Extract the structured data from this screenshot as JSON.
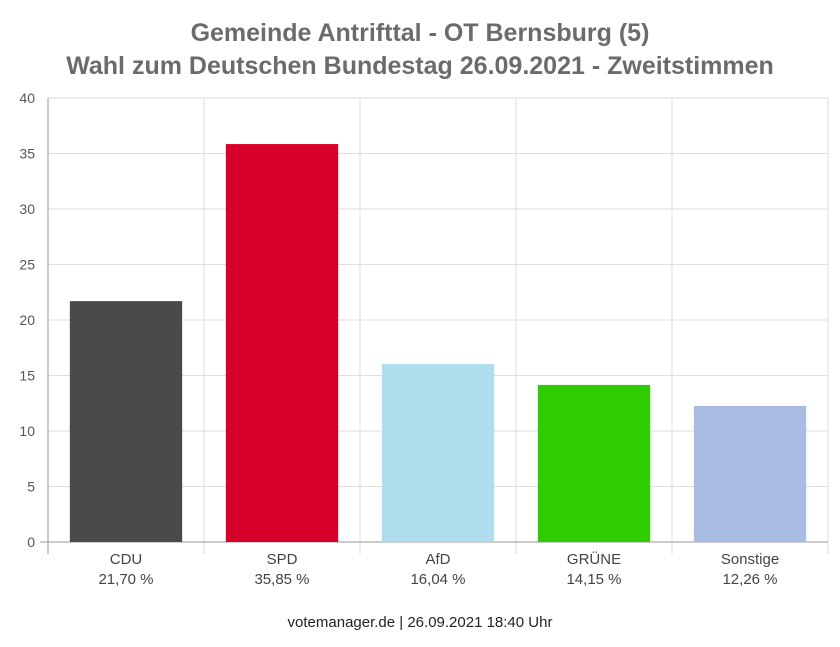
{
  "chart_data": {
    "type": "bar",
    "title": "Gemeinde Antrifttal - OT Bernsburg (5)",
    "subtitle": "Wahl zum Deutschen Bundestag 26.09.2021  - Zweitstimmen",
    "categories": [
      "CDU",
      "SPD",
      "AfD",
      "GRÜNE",
      "Sonstige"
    ],
    "values": [
      21.7,
      35.85,
      16.04,
      14.15,
      12.26
    ],
    "value_labels": [
      "21,70 %",
      "35,85 %",
      "16,04 %",
      "14,15 %",
      "12,26 %"
    ],
    "colors": [
      "#4a4a4a",
      "#d7002a",
      "#b0dded",
      "#2ecc00",
      "#a9bde3"
    ],
    "ylim": [
      0,
      40
    ],
    "yticks": [
      0,
      5,
      10,
      15,
      20,
      25,
      30,
      35,
      40
    ],
    "grid": true,
    "xlabel": "",
    "ylabel": ""
  },
  "footer": "votemanager.de | 26.09.2021 18:40 Uhr"
}
